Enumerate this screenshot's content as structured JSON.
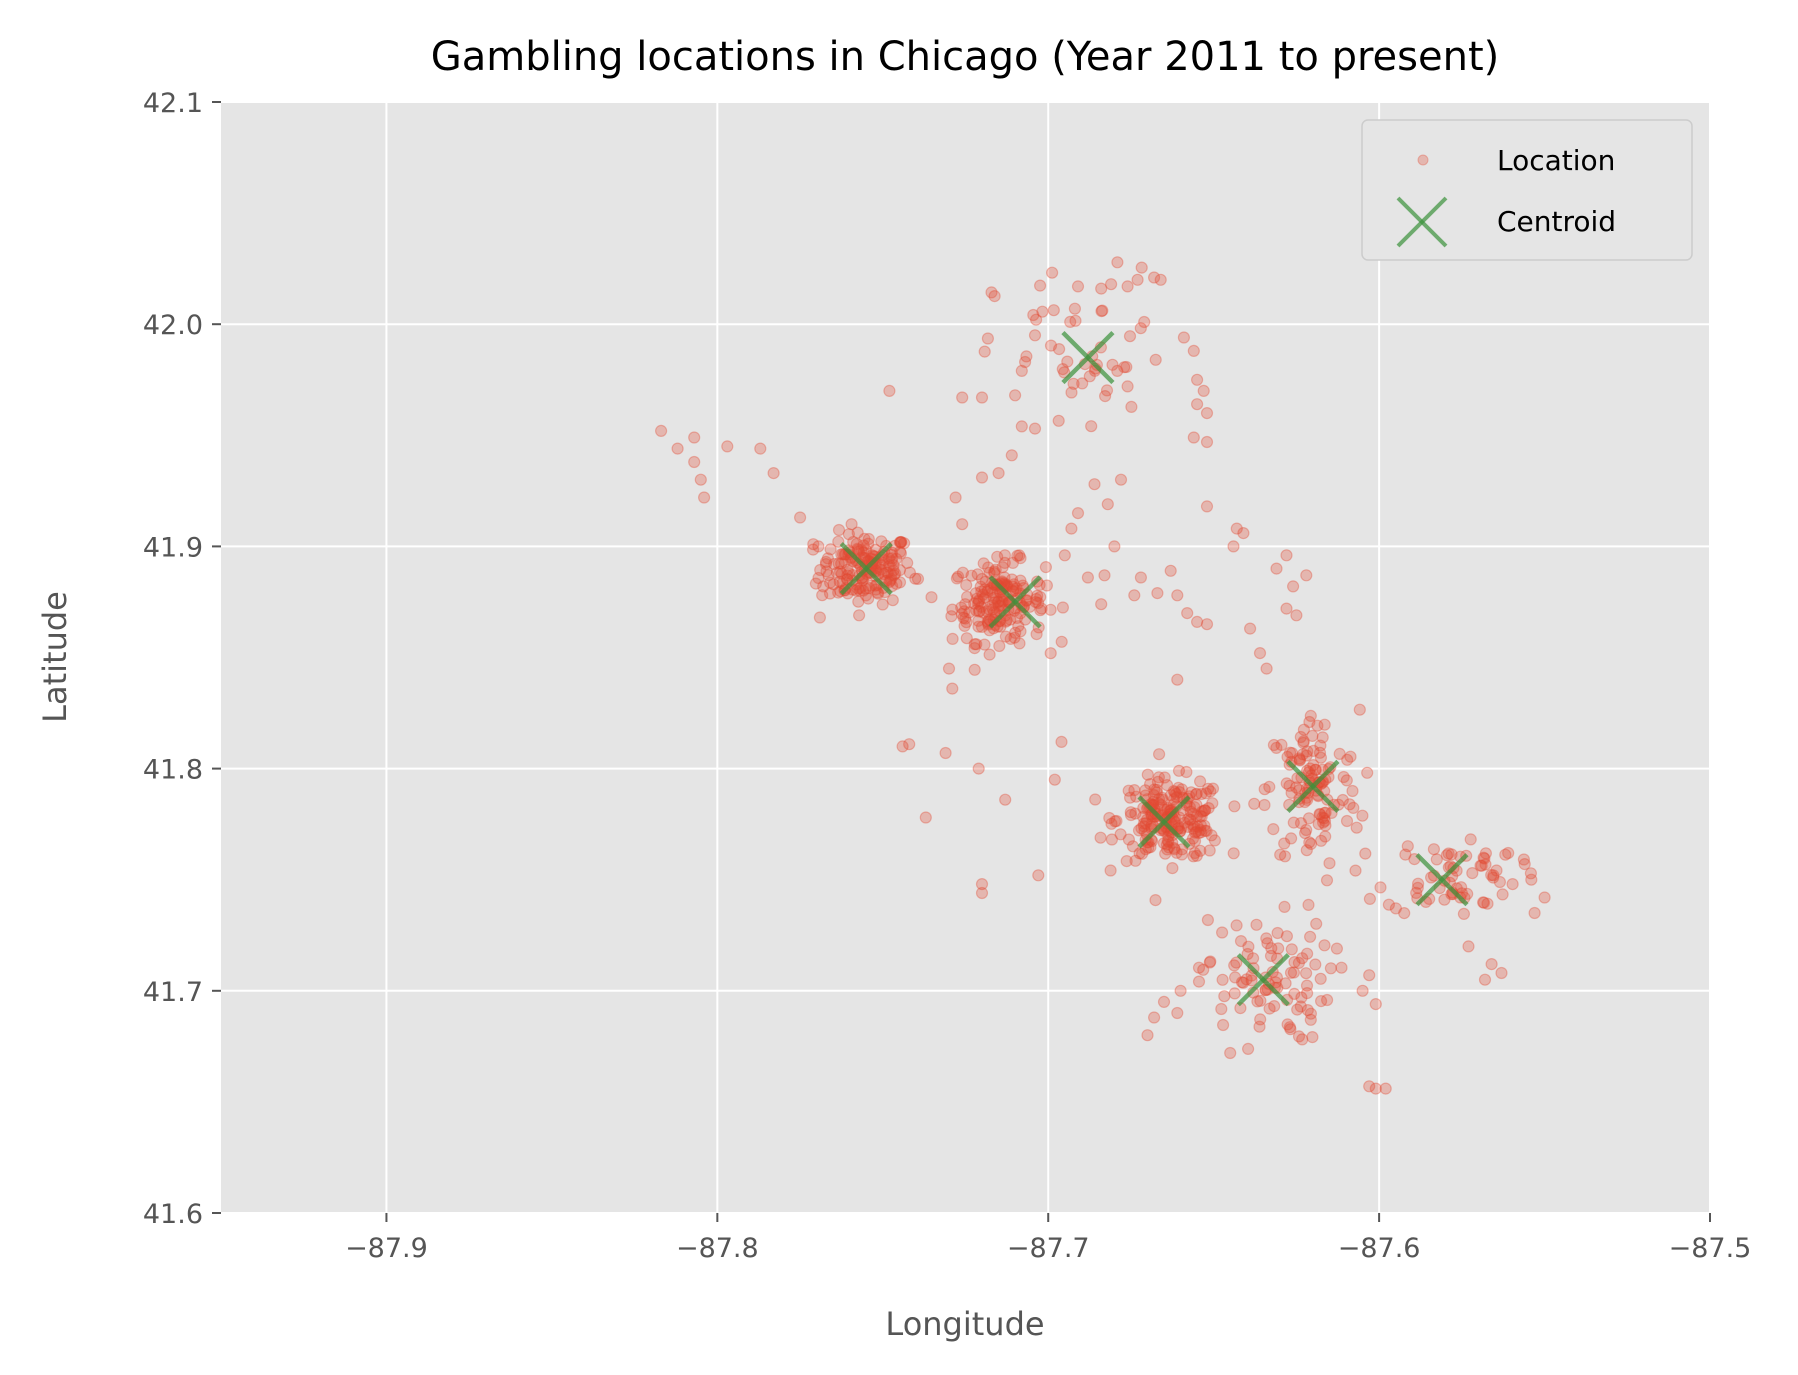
{
  "chart_data": {
    "type": "scatter",
    "title": "Gambling locations in Chicago (Year 2011 to present)",
    "xlabel": "Longitude",
    "ylabel": "Latitude",
    "xlim": [
      -87.95,
      -87.5
    ],
    "ylim": [
      41.6,
      42.1
    ],
    "xticks": [
      -87.9,
      -87.8,
      -87.7,
      -87.6,
      -87.5
    ],
    "xtick_labels": [
      "−87.9",
      "−87.8",
      "−87.7",
      "−87.6",
      "−87.5"
    ],
    "yticks": [
      41.6,
      41.7,
      41.8,
      41.9,
      42.0,
      42.1
    ],
    "ytick_labels": [
      "41.6",
      "41.7",
      "41.8",
      "41.9",
      "42.0",
      "42.1"
    ],
    "grid": true,
    "legend_position": "top-right",
    "colors": {
      "background": "#E5E5E5",
      "grid": "#FFFFFF",
      "location": "#E24A33",
      "centroid": "#3A923A"
    },
    "series": [
      {
        "name": "Location",
        "marker": "circle",
        "clusters": [
          {
            "center": [
              -87.755,
              41.89
            ],
            "spread": [
              0.007,
              0.008
            ],
            "count": 170
          },
          {
            "center": [
              -87.715,
              41.875
            ],
            "spread": [
              0.007,
              0.009
            ],
            "count": 180
          },
          {
            "center": [
              -87.663,
              41.777
            ],
            "spread": [
              0.008,
              0.009
            ],
            "count": 210
          },
          {
            "center": [
              -87.62,
              41.79
            ],
            "spread": [
              0.007,
              0.018
            ],
            "count": 120
          },
          {
            "center": [
              -87.578,
              41.752
            ],
            "spread": [
              0.01,
              0.009
            ],
            "count": 65
          },
          {
            "center": [
              -87.635,
              41.705
            ],
            "spread": [
              0.01,
              0.014
            ],
            "count": 90
          },
          {
            "center": [
              -87.69,
              41.985
            ],
            "spread": [
              0.013,
              0.02
            ],
            "count": 45
          }
        ],
        "points": [
          {
            "x": -87.817,
            "y": 41.952
          },
          {
            "x": -87.812,
            "y": 41.944
          },
          {
            "x": -87.807,
            "y": 41.949
          },
          {
            "x": -87.807,
            "y": 41.938
          },
          {
            "x": -87.805,
            "y": 41.93
          },
          {
            "x": -87.804,
            "y": 41.922
          },
          {
            "x": -87.797,
            "y": 41.945
          },
          {
            "x": -87.783,
            "y": 41.933
          },
          {
            "x": -87.787,
            "y": 41.944
          },
          {
            "x": -87.775,
            "y": 41.913
          },
          {
            "x": -87.771,
            "y": 41.901
          },
          {
            "x": -87.769,
            "y": 41.868
          },
          {
            "x": -87.768,
            "y": 41.882
          },
          {
            "x": -87.748,
            "y": 41.97
          },
          {
            "x": -87.744,
            "y": 41.81
          },
          {
            "x": -87.742,
            "y": 41.811
          },
          {
            "x": -87.737,
            "y": 41.778
          },
          {
            "x": -87.731,
            "y": 41.807
          },
          {
            "x": -87.729,
            "y": 41.836
          },
          {
            "x": -87.73,
            "y": 41.845
          },
          {
            "x": -87.726,
            "y": 41.91
          },
          {
            "x": -87.728,
            "y": 41.922
          },
          {
            "x": -87.726,
            "y": 41.967
          },
          {
            "x": -87.721,
            "y": 41.8
          },
          {
            "x": -87.72,
            "y": 41.748
          },
          {
            "x": -87.72,
            "y": 41.744
          },
          {
            "x": -87.72,
            "y": 41.931
          },
          {
            "x": -87.72,
            "y": 41.967
          },
          {
            "x": -87.715,
            "y": 41.933
          },
          {
            "x": -87.713,
            "y": 41.786
          },
          {
            "x": -87.711,
            "y": 41.941
          },
          {
            "x": -87.71,
            "y": 41.968
          },
          {
            "x": -87.708,
            "y": 41.979
          },
          {
            "x": -87.708,
            "y": 41.954
          },
          {
            "x": -87.707,
            "y": 41.983
          },
          {
            "x": -87.704,
            "y": 41.995
          },
          {
            "x": -87.704,
            "y": 41.953
          },
          {
            "x": -87.703,
            "y": 41.752
          },
          {
            "x": -87.698,
            "y": 41.795
          },
          {
            "x": -87.696,
            "y": 41.812
          },
          {
            "x": -87.695,
            "y": 41.896
          },
          {
            "x": -87.693,
            "y": 41.908
          },
          {
            "x": -87.691,
            "y": 41.915
          },
          {
            "x": -87.688,
            "y": 41.886
          },
          {
            "x": -87.686,
            "y": 41.928
          },
          {
            "x": -87.684,
            "y": 41.874
          },
          {
            "x": -87.683,
            "y": 41.887
          },
          {
            "x": -87.68,
            "y": 41.9
          },
          {
            "x": -87.682,
            "y": 41.919
          },
          {
            "x": -87.674,
            "y": 41.878
          },
          {
            "x": -87.672,
            "y": 41.886
          },
          {
            "x": -87.671,
            "y": 42.001
          },
          {
            "x": -87.667,
            "y": 41.879
          },
          {
            "x": -87.663,
            "y": 41.889
          },
          {
            "x": -87.661,
            "y": 41.878
          },
          {
            "x": -87.658,
            "y": 41.87
          },
          {
            "x": -87.655,
            "y": 41.866
          },
          {
            "x": -87.652,
            "y": 41.865
          },
          {
            "x": -87.656,
            "y": 41.949
          },
          {
            "x": -87.652,
            "y": 41.947
          },
          {
            "x": -87.652,
            "y": 41.918
          },
          {
            "x": -87.661,
            "y": 41.84
          },
          {
            "x": -87.659,
            "y": 41.994
          },
          {
            "x": -87.656,
            "y": 41.988
          },
          {
            "x": -87.655,
            "y": 41.975
          },
          {
            "x": -87.655,
            "y": 41.964
          },
          {
            "x": -87.653,
            "y": 41.97
          },
          {
            "x": -87.652,
            "y": 41.96
          },
          {
            "x": -87.644,
            "y": 41.9
          },
          {
            "x": -87.643,
            "y": 41.908
          },
          {
            "x": -87.641,
            "y": 41.906
          },
          {
            "x": -87.639,
            "y": 41.863
          },
          {
            "x": -87.636,
            "y": 41.852
          },
          {
            "x": -87.634,
            "y": 41.845
          },
          {
            "x": -87.628,
            "y": 41.896
          },
          {
            "x": -87.631,
            "y": 41.89
          },
          {
            "x": -87.626,
            "y": 41.882
          },
          {
            "x": -87.622,
            "y": 41.887
          },
          {
            "x": -87.625,
            "y": 41.869
          },
          {
            "x": -87.628,
            "y": 41.872
          },
          {
            "x": -87.603,
            "y": 41.657
          },
          {
            "x": -87.601,
            "y": 41.656
          },
          {
            "x": -87.598,
            "y": 41.656
          },
          {
            "x": -87.605,
            "y": 41.7
          },
          {
            "x": -87.603,
            "y": 41.707
          },
          {
            "x": -87.601,
            "y": 41.694
          },
          {
            "x": -87.661,
            "y": 41.69
          },
          {
            "x": -87.66,
            "y": 41.7
          },
          {
            "x": -87.665,
            "y": 41.695
          },
          {
            "x": -87.668,
            "y": 41.688
          },
          {
            "x": -87.67,
            "y": 41.68
          },
          {
            "x": -87.645,
            "y": 41.672
          },
          {
            "x": -87.673,
            "y": 42.02
          },
          {
            "x": -87.668,
            "y": 42.021
          },
          {
            "x": -87.666,
            "y": 42.02
          },
          {
            "x": -87.681,
            "y": 42.018
          },
          {
            "x": -87.684,
            "y": 42.016
          },
          {
            "x": -87.691,
            "y": 42.017
          },
          {
            "x": -87.676,
            "y": 42.017
          },
          {
            "x": -87.676,
            "y": 41.972
          },
          {
            "x": -87.678,
            "y": 41.93
          },
          {
            "x": -87.55,
            "y": 41.742
          },
          {
            "x": -87.553,
            "y": 41.735
          },
          {
            "x": -87.554,
            "y": 41.75
          },
          {
            "x": -87.568,
            "y": 41.705
          },
          {
            "x": -87.566,
            "y": 41.712
          },
          {
            "x": -87.563,
            "y": 41.708
          },
          {
            "x": -87.573,
            "y": 41.72
          },
          {
            "x": -87.561,
            "y": 41.762
          },
          {
            "x": -87.556,
            "y": 41.757
          }
        ]
      },
      {
        "name": "Centroid",
        "marker": "x",
        "points": [
          {
            "x": -87.755,
            "y": 41.89
          },
          {
            "x": -87.71,
            "y": 41.875
          },
          {
            "x": -87.688,
            "y": 41.985
          },
          {
            "x": -87.665,
            "y": 41.776
          },
          {
            "x": -87.62,
            "y": 41.792
          },
          {
            "x": -87.581,
            "y": 41.75
          },
          {
            "x": -87.635,
            "y": 41.705
          }
        ]
      }
    ]
  }
}
